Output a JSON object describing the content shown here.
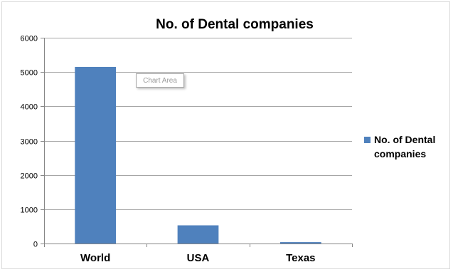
{
  "chart_data": {
    "type": "bar",
    "title": "No. of Dental companies",
    "categories": [
      "World",
      "USA",
      "Texas"
    ],
    "series": [
      {
        "name": "No. of Dental companies",
        "values": [
          5150,
          530,
          40
        ]
      }
    ],
    "xlabel": "",
    "ylabel": "",
    "ylim": [
      0,
      6000
    ],
    "yticks": [
      0,
      1000,
      2000,
      3000,
      4000,
      5000,
      6000
    ],
    "grid": true,
    "legend_position": "right"
  },
  "tooltip_text": "Chart Area",
  "colors": {
    "bar": "#4f81bd",
    "grid": "#a6a6a6",
    "axis": "#868686"
  }
}
